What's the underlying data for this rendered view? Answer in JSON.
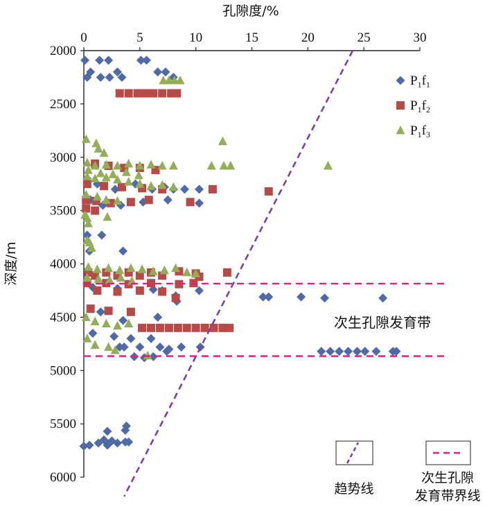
{
  "chart_data": {
    "type": "scatter",
    "xlabel": "孔隙度/%",
    "ylabel": "深度/m",
    "xlim": [
      0,
      30
    ],
    "ylim": [
      2000,
      6000
    ],
    "x_axis_position": "top",
    "y_inverted": true,
    "x_ticks": [
      "0",
      "5",
      "10",
      "15",
      "20",
      "25",
      "30"
    ],
    "y_ticks": [
      "2000",
      "2500",
      "3000",
      "3500",
      "4000",
      "4500",
      "5000",
      "5500",
      "6000"
    ],
    "grid": false,
    "legend_position": "top-right",
    "series": [
      {
        "name": "P1f1",
        "name_main": "P",
        "name_sub1": "1",
        "name_mid": "f",
        "name_sub2": "1",
        "color": "#4f6aa6",
        "marker": "diamond",
        "points": [
          [
            0.1,
            2090
          ],
          [
            1.4,
            2090
          ],
          [
            2.2,
            2090
          ],
          [
            5.1,
            2090
          ],
          [
            5.6,
            2090
          ],
          [
            0.6,
            2200
          ],
          [
            0.3,
            2250
          ],
          [
            1.5,
            2250
          ],
          [
            2.3,
            2250
          ],
          [
            3.0,
            2200
          ],
          [
            3.4,
            2250
          ],
          [
            6.6,
            2200
          ],
          [
            7.3,
            2200
          ],
          [
            8.0,
            2250
          ],
          [
            0.3,
            3200
          ],
          [
            1.2,
            3250
          ],
          [
            2.8,
            3300
          ],
          [
            4.6,
            3250
          ],
          [
            6.1,
            3300
          ],
          [
            7.2,
            3280
          ],
          [
            8.0,
            3300
          ],
          [
            9.0,
            3300
          ],
          [
            10.3,
            3300
          ],
          [
            0.6,
            3400
          ],
          [
            1.7,
            3450
          ],
          [
            3.3,
            3450
          ],
          [
            5.3,
            3420
          ],
          [
            7.5,
            3400
          ],
          [
            10.3,
            3430
          ],
          [
            0.3,
            3730
          ],
          [
            1.6,
            3730
          ],
          [
            0.5,
            3880
          ],
          [
            3.5,
            3880
          ],
          [
            0.8,
            4220
          ],
          [
            3.0,
            4230
          ],
          [
            6.2,
            4240
          ],
          [
            7.0,
            4250
          ],
          [
            8.2,
            4300
          ],
          [
            8.3,
            4350
          ],
          [
            10.3,
            4250
          ],
          [
            1.5,
            4450
          ],
          [
            3.5,
            4530
          ],
          [
            6.6,
            4500
          ],
          [
            16.0,
            4310
          ],
          [
            16.5,
            4310
          ],
          [
            19.4,
            4310
          ],
          [
            21.5,
            4320
          ],
          [
            26.7,
            4320
          ],
          [
            0.8,
            4650
          ],
          [
            2.7,
            4680
          ],
          [
            4.2,
            4700
          ],
          [
            6.0,
            4700
          ],
          [
            3.2,
            4780
          ],
          [
            3.6,
            4780
          ],
          [
            5.0,
            4780
          ],
          [
            6.8,
            4780
          ],
          [
            7.6,
            4800
          ],
          [
            8.7,
            4780
          ],
          [
            10.4,
            4780
          ],
          [
            4.5,
            4870
          ],
          [
            5.4,
            4880
          ],
          [
            6.2,
            4870
          ],
          [
            7.4,
            4820
          ],
          [
            21.2,
            4820
          ],
          [
            22.0,
            4820
          ],
          [
            22.8,
            4820
          ],
          [
            23.6,
            4820
          ],
          [
            24.4,
            4820
          ],
          [
            25.1,
            4820
          ],
          [
            26.1,
            4820
          ],
          [
            27.6,
            4820
          ],
          [
            27.9,
            4820
          ],
          [
            3.8,
            5520
          ],
          [
            3.7,
            5560
          ],
          [
            2.1,
            5570
          ],
          [
            0.0,
            5710
          ],
          [
            0.5,
            5700
          ],
          [
            1.3,
            5680
          ],
          [
            1.8,
            5650
          ],
          [
            2.1,
            5700
          ],
          [
            2.5,
            5660
          ],
          [
            3.0,
            5680
          ],
          [
            3.7,
            5670
          ],
          [
            4.0,
            5670
          ]
        ]
      },
      {
        "name": "P1f2",
        "name_main": "P",
        "name_sub1": "1",
        "name_mid": "f",
        "name_sub2": "2",
        "color": "#b64a47",
        "marker": "square",
        "points": [
          [
            3.2,
            2400
          ],
          [
            4.0,
            2400
          ],
          [
            4.8,
            2400
          ],
          [
            5.5,
            2400
          ],
          [
            6.2,
            2400
          ],
          [
            7.0,
            2400
          ],
          [
            7.8,
            2400
          ],
          [
            8.3,
            2400
          ],
          [
            1.0,
            3060
          ],
          [
            2.2,
            3080
          ],
          [
            3.6,
            3100
          ],
          [
            5.0,
            3100
          ],
          [
            6.4,
            3120
          ],
          [
            0.3,
            3250
          ],
          [
            1.8,
            3270
          ],
          [
            3.4,
            3280
          ],
          [
            5.2,
            3290
          ],
          [
            7.0,
            3300
          ],
          [
            11.5,
            3300
          ],
          [
            16.5,
            3320
          ],
          [
            0.2,
            3400
          ],
          [
            1.1,
            3410
          ],
          [
            2.4,
            3430
          ],
          [
            4.2,
            3420
          ],
          [
            5.8,
            3400
          ],
          [
            9.5,
            3420
          ],
          [
            0.2,
            3480
          ],
          [
            1.0,
            3500
          ],
          [
            0.4,
            4080
          ],
          [
            2.0,
            4080
          ],
          [
            4.0,
            4080
          ],
          [
            6.0,
            4080
          ],
          [
            8.5,
            4070
          ],
          [
            10.0,
            4090
          ],
          [
            12.8,
            4080
          ],
          [
            1.0,
            4110
          ],
          [
            3.0,
            4110
          ],
          [
            5.0,
            4110
          ],
          [
            7.0,
            4110
          ],
          [
            10.3,
            4120
          ],
          [
            0.3,
            4180
          ],
          [
            2.0,
            4180
          ],
          [
            4.0,
            4190
          ],
          [
            6.0,
            4180
          ],
          [
            8.5,
            4190
          ],
          [
            9.8,
            4180
          ],
          [
            1.2,
            4250
          ],
          [
            3.0,
            4260
          ],
          [
            5.0,
            4250
          ],
          [
            7.0,
            4260
          ],
          [
            8.2,
            4320
          ],
          [
            0.6,
            4420
          ],
          [
            2.2,
            4440
          ],
          [
            4.2,
            4450
          ],
          [
            5.2,
            4600
          ],
          [
            6.0,
            4600
          ],
          [
            6.8,
            4600
          ],
          [
            7.6,
            4600
          ],
          [
            8.4,
            4600
          ],
          [
            9.2,
            4600
          ],
          [
            10.0,
            4600
          ],
          [
            10.8,
            4600
          ],
          [
            11.6,
            4600
          ],
          [
            12.4,
            4600
          ],
          [
            13.0,
            4600
          ]
        ]
      },
      {
        "name": "P1f3",
        "name_main": "P",
        "name_sub1": "1",
        "name_mid": "f",
        "name_sub2": "3",
        "color": "#93ad58",
        "marker": "triangle",
        "points": [
          [
            7.1,
            2280
          ],
          [
            7.6,
            2280
          ],
          [
            8.1,
            2280
          ],
          [
            8.6,
            2280
          ],
          [
            0.2,
            2830
          ],
          [
            1.1,
            2870
          ],
          [
            1.3,
            2920
          ],
          [
            1.8,
            2960
          ],
          [
            0.3,
            3050
          ],
          [
            1.0,
            3080
          ],
          [
            2.0,
            3070
          ],
          [
            3.0,
            3080
          ],
          [
            4.0,
            3060
          ],
          [
            5.0,
            3080
          ],
          [
            6.0,
            3070
          ],
          [
            7.0,
            3080
          ],
          [
            8.0,
            3080
          ],
          [
            11.4,
            3080
          ],
          [
            12.5,
            3080
          ],
          [
            13.1,
            3080
          ],
          [
            12.4,
            2850
          ],
          [
            21.8,
            3080
          ],
          [
            0.4,
            3120
          ],
          [
            1.5,
            3150
          ],
          [
            2.6,
            3160
          ],
          [
            3.8,
            3140
          ],
          [
            4.9,
            3170
          ],
          [
            0.3,
            3180
          ],
          [
            1.0,
            3200
          ],
          [
            2.0,
            3190
          ],
          [
            3.0,
            3210
          ],
          [
            4.0,
            3230
          ],
          [
            5.0,
            3250
          ],
          [
            6.0,
            3270
          ],
          [
            7.0,
            3260
          ],
          [
            8.0,
            3280
          ],
          [
            0.2,
            3350
          ],
          [
            1.2,
            3370
          ],
          [
            2.0,
            3400
          ],
          [
            3.0,
            3410
          ],
          [
            0.1,
            3540
          ],
          [
            0.3,
            3570
          ],
          [
            2.1,
            3560
          ],
          [
            0.4,
            3620
          ],
          [
            0.3,
            3780
          ],
          [
            0.5,
            3800
          ],
          [
            0.7,
            3850
          ],
          [
            0.4,
            4030
          ],
          [
            1.2,
            4050
          ],
          [
            2.2,
            4040
          ],
          [
            3.2,
            4060
          ],
          [
            4.2,
            4040
          ],
          [
            5.2,
            4050
          ],
          [
            6.2,
            4070
          ],
          [
            7.2,
            4060
          ],
          [
            8.2,
            4040
          ],
          [
            9.2,
            4080
          ],
          [
            10.0,
            4090
          ],
          [
            0.3,
            4130
          ],
          [
            1.3,
            4140
          ],
          [
            2.3,
            4150
          ],
          [
            3.3,
            4130
          ],
          [
            4.3,
            4160
          ],
          [
            0.2,
            4500
          ],
          [
            1.0,
            4540
          ],
          [
            2.0,
            4560
          ],
          [
            3.0,
            4580
          ],
          [
            4.0,
            4560
          ],
          [
            0.3,
            4700
          ],
          [
            1.0,
            4760
          ],
          [
            2.2,
            4780
          ],
          [
            2.8,
            4810
          ],
          [
            5.7,
            4860
          ]
        ]
      }
    ],
    "annotations": {
      "zone_label": "次生孔隙发育带",
      "trend_line": {
        "x": [
          24.0,
          3.6
        ],
        "y": [
          2000,
          6180
        ],
        "style": "dashed",
        "color": "#7b3fa3"
      },
      "boundary_lines": [
        {
          "y": 4185,
          "x": [
            0,
            32.5
          ],
          "color": "#e21e7c",
          "style": "dashed"
        },
        {
          "y": 4865,
          "x": [
            0,
            32.5
          ],
          "color": "#e21e7c",
          "style": "dashed"
        }
      ]
    },
    "key": {
      "trend_label": "趋势线",
      "boundary_label_line1": "次生孔隙",
      "boundary_label_line2": "发育带界线"
    }
  }
}
